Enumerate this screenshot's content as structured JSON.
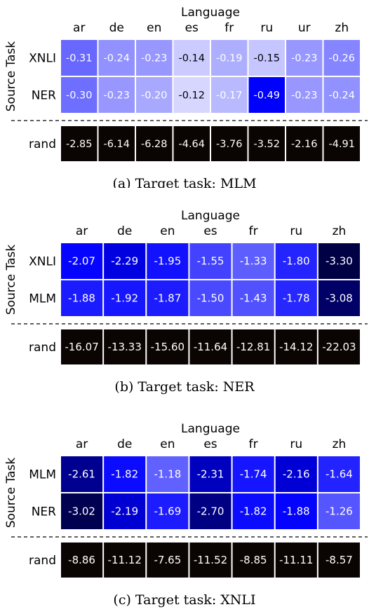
{
  "chart_data": [
    {
      "type": "heatmap",
      "caption": "(a) Target task: MLM",
      "xlabel": "Language",
      "ylabel": "Source Task",
      "columns": [
        "ar",
        "de",
        "en",
        "es",
        "fr",
        "ru",
        "ur",
        "zh"
      ],
      "rows": [
        {
          "label": "XNLI",
          "values": [
            -0.31,
            -0.24,
            -0.23,
            -0.14,
            -0.19,
            -0.15,
            -0.23,
            -0.26
          ]
        },
        {
          "label": "NER",
          "values": [
            -0.3,
            -0.23,
            -0.2,
            -0.12,
            -0.17,
            -0.49,
            -0.23,
            -0.24
          ]
        }
      ],
      "baseline": {
        "label": "rand",
        "values": [
          -2.85,
          -6.14,
          -6.28,
          -4.64,
          -3.76,
          -3.52,
          -2.16,
          -4.91
        ]
      },
      "color_scale": {
        "low_color": "#0000ff",
        "high_color": "#ffffff",
        "low": -0.49,
        "high": -0.05
      },
      "baseline_color": "#0a0503"
    },
    {
      "type": "heatmap",
      "caption": "(b) Target task: NER",
      "xlabel": "Language",
      "ylabel": "Source Task",
      "columns": [
        "ar",
        "de",
        "en",
        "es",
        "fr",
        "ru",
        "zh"
      ],
      "rows": [
        {
          "label": "XNLI",
          "values": [
            -2.07,
            -2.29,
            -1.95,
            -1.55,
            -1.33,
            -1.8,
            -3.3
          ]
        },
        {
          "label": "MLM",
          "values": [
            -1.88,
            -1.92,
            -1.87,
            -1.5,
            -1.43,
            -1.78,
            -3.08
          ]
        }
      ],
      "baseline": {
        "label": "rand",
        "values": [
          -16.07,
          -13.33,
          -15.6,
          -11.64,
          -12.81,
          -14.12,
          -22.03
        ]
      },
      "color_scale": {
        "low_color": "#000044",
        "mid_color": "#0000ff",
        "high_color": "#ffffff",
        "low": -3.3,
        "mid": -2.1,
        "high": 0.0
      },
      "baseline_color": "#0a0503"
    },
    {
      "type": "heatmap",
      "caption": "(c) Target task: XNLI",
      "xlabel": "Language",
      "ylabel": "Source Task",
      "columns": [
        "ar",
        "de",
        "en",
        "es",
        "fr",
        "ru",
        "zh"
      ],
      "rows": [
        {
          "label": "MLM",
          "values": [
            -2.61,
            -1.82,
            -1.18,
            -2.31,
            -1.74,
            -2.16,
            -1.64
          ]
        },
        {
          "label": "NER",
          "values": [
            -3.02,
            -2.19,
            -1.69,
            -2.7,
            -1.82,
            -1.88,
            -1.26
          ]
        }
      ],
      "baseline": {
        "label": "rand",
        "values": [
          -8.86,
          -11.12,
          -7.65,
          -11.52,
          -8.85,
          -11.11,
          -8.57
        ]
      },
      "color_scale": {
        "low_color": "#000044",
        "mid_color": "#0000ff",
        "high_color": "#ffffff",
        "low": -3.1,
        "mid": -1.9,
        "high": 0.0
      },
      "baseline_color": "#0a0503"
    }
  ]
}
